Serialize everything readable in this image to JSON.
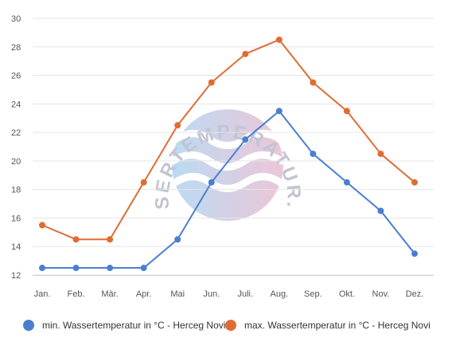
{
  "chart_data": {
    "type": "line",
    "categories": [
      "Jan.",
      "Feb.",
      "Mär.",
      "Apr.",
      "Mai",
      "Jun.",
      "Juli.",
      "Aug.",
      "Sep.",
      "Okt.",
      "Nov.",
      "Dez."
    ],
    "series": [
      {
        "name": "min. Wassertemperatur in °C - Herceg Novi",
        "color": "#4a7fd0",
        "values": [
          12.5,
          12.5,
          12.5,
          12.5,
          14.5,
          18.5,
          21.5,
          23.5,
          20.5,
          18.5,
          16.5,
          13.5
        ]
      },
      {
        "name": "max. Wassertemperatur in °C - Herceg Novi",
        "color": "#e06c34",
        "values": [
          15.5,
          14.5,
          14.5,
          18.5,
          22.5,
          25.5,
          27.5,
          28.5,
          25.5,
          23.5,
          20.5,
          18.5
        ]
      }
    ],
    "ylim": [
      12,
      30
    ],
    "yticks": [
      12,
      14,
      16,
      18,
      20,
      22,
      24,
      26,
      28,
      30
    ],
    "grid": "horizontal",
    "legend": "bottom",
    "watermark": "WASSERTEMPERATUR.ORG"
  }
}
